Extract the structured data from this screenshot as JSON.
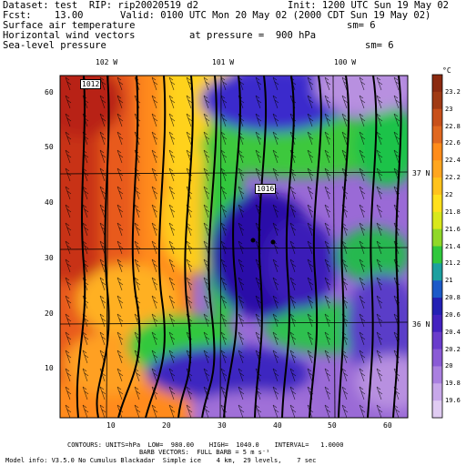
{
  "header": {
    "dataset": "Dataset: test  RIP: rip20020519 d2",
    "init": "Init: 1200 UTC Sun 19 May 02",
    "fcst": "Fcst:    13.00",
    "valid": "Valid: 0100 UTC Mon 20 May 02 (2000 CDT Sun 19 May 02)",
    "field1": "Surface air temperature",
    "field1_sm": "sm= 6",
    "field2": "Horizontal wind vectors",
    "field2_pressure": "at pressure =  900 hPa",
    "field3": "Sea-level pressure",
    "field3_sm": "sm= 6"
  },
  "map": {
    "lon_labels": [
      "102 W",
      "101 W",
      "100 W"
    ],
    "lat_labels": [
      "37 N",
      "36 N"
    ],
    "x_ticks": [
      "10",
      "20",
      "30",
      "40",
      "50",
      "60"
    ],
    "y_ticks": [
      "60",
      "50",
      "40",
      "30",
      "20",
      "10"
    ],
    "contour_labels": [
      "1012",
      "1016"
    ],
    "temperature_colors": {
      "warmest": "#c83018",
      "warm": "#ff7a1a",
      "mid": "#ffd700",
      "cool": "#1cc34a",
      "coolest": "#2a0fa8",
      "background": "#9a6ad6"
    }
  },
  "colorbar": {
    "unit": "°C",
    "labels": [
      "23.2",
      "23",
      "22.8",
      "22.6",
      "22.4",
      "22.2",
      "22",
      "21.8",
      "21.6",
      "21.4",
      "21.2",
      "21",
      "20.8",
      "20.6",
      "20.4",
      "20.2",
      "20",
      "19.8",
      "19.6"
    ],
    "colors": [
      "#8b2a10",
      "#a03a14",
      "#c8501a",
      "#e06820",
      "#ff8c1a",
      "#ffa620",
      "#ffc21c",
      "#ffe01c",
      "#d8e81c",
      "#90d828",
      "#30c83c",
      "#1ca0a0",
      "#1c5ac8",
      "#2420b4",
      "#4422c0",
      "#6a3ccc",
      "#8a5ad6",
      "#aa80e0",
      "#c8a8ea",
      "#e0ccf2"
    ]
  },
  "footer": {
    "contours": "CONTOURS: UNITS=hPa  LOW=  980.00    HIGH=  1040.0    INTERVAL=   1.0000",
    "barbs": "BARB VECTORS:  FULL BARB = 5 m s⁻¹",
    "model_info": "Model info: V3.5.0 No Cumulus Blackadar  Simple ice    4 km,  29 levels,    7 sec"
  }
}
